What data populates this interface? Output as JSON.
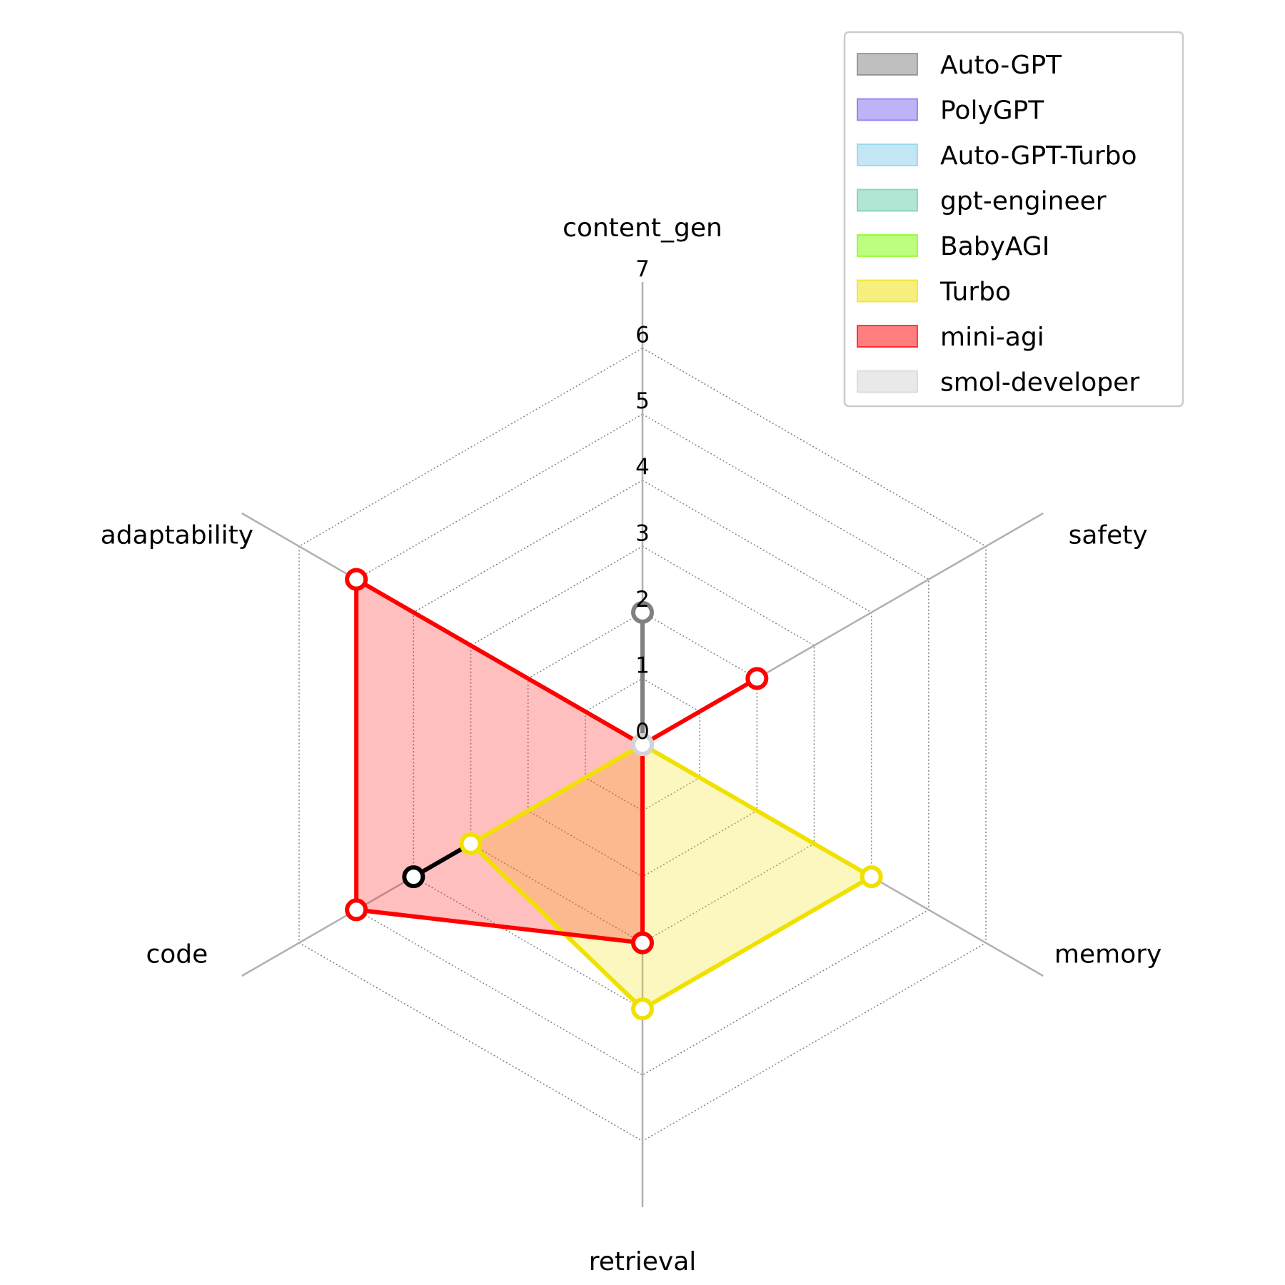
{
  "chart_data": {
    "type": "radar",
    "axes": [
      "content_gen",
      "safety",
      "memory",
      "retrieval",
      "code",
      "adaptability"
    ],
    "rticks": [
      "0",
      "1",
      "2",
      "3",
      "4",
      "5",
      "6",
      "7"
    ],
    "rlim": [
      0,
      7
    ],
    "grid": true,
    "legend_position": "top-right",
    "series": [
      {
        "name": "Auto-GPT",
        "color": "#808080",
        "values": [
          2,
          0,
          0,
          0,
          0,
          0
        ],
        "visible": true
      },
      {
        "name": "PolyGPT",
        "color": "#7b68ee",
        "values": [
          0,
          0,
          0,
          0,
          0,
          0
        ],
        "visible": false
      },
      {
        "name": "Auto-GPT-Turbo",
        "color": "#87ceeb",
        "values": [
          0,
          0,
          0,
          0,
          0,
          0
        ],
        "visible": false
      },
      {
        "name": "gpt-engineer",
        "color": "#66cdaa",
        "values": [
          0,
          0,
          0,
          0,
          0,
          0
        ],
        "visible": false
      },
      {
        "name": "BabyAGI",
        "color": "#7cfc00",
        "values": [
          0,
          0,
          0,
          0,
          0,
          0
        ],
        "visible": false
      },
      {
        "name": "Turbo",
        "color": "#f0e100",
        "values": [
          0,
          0,
          4,
          4,
          3,
          0
        ],
        "visible": true
      },
      {
        "name": "mini-agi",
        "color": "#ff0000",
        "values": [
          0,
          2,
          0,
          3,
          5,
          5
        ],
        "visible": true
      },
      {
        "name": "smol-developer",
        "color": "#d3d3d3",
        "values": [
          0,
          0,
          0,
          0,
          0,
          0
        ],
        "visible": true
      }
    ],
    "extra_segments": [
      {
        "color": "#000000",
        "from": {
          "axis": "code",
          "value": 4
        },
        "to": {
          "axis": "code",
          "value": 3
        }
      }
    ]
  }
}
